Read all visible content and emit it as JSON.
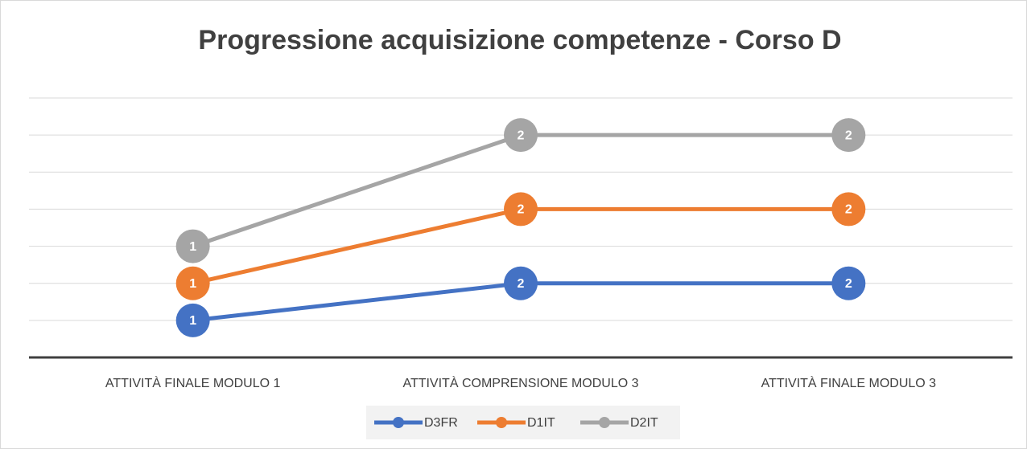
{
  "chart_data": {
    "type": "line",
    "stacked": true,
    "title": "Progressione acquisizione competenze - Corso D",
    "categories": [
      "ATTIVITÀ FINALE MODULO 1",
      "ATTIVITÀ COMPRENSIONE MODULO 3",
      "ATTIVITÀ FINALE MODULO 3"
    ],
    "series": [
      {
        "name": "D3FR",
        "color": "#4472c4",
        "values": [
          1,
          2,
          2
        ]
      },
      {
        "name": "D1IT",
        "color": "#ed7d31",
        "values": [
          1,
          2,
          2
        ]
      },
      {
        "name": "D2IT",
        "color": "#a5a5a5",
        "values": [
          1,
          2,
          2
        ]
      }
    ],
    "ylim": [
      0,
      7
    ],
    "yticks": [
      0,
      1,
      2,
      3,
      4,
      5,
      6,
      7
    ],
    "grid": true,
    "legend": "bottom"
  }
}
